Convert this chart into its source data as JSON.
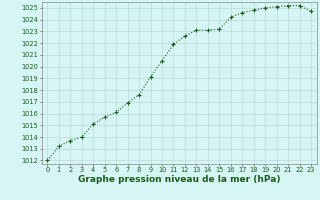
{
  "x": [
    0,
    1,
    2,
    3,
    4,
    5,
    6,
    7,
    8,
    9,
    10,
    11,
    12,
    13,
    14,
    15,
    16,
    17,
    18,
    19,
    20,
    21,
    22,
    23
  ],
  "y": [
    1012.0,
    1013.2,
    1013.7,
    1014.0,
    1015.1,
    1015.7,
    1016.1,
    1016.9,
    1017.6,
    1019.1,
    1020.5,
    1021.9,
    1022.6,
    1023.1,
    1023.1,
    1023.2,
    1024.2,
    1024.6,
    1024.8,
    1025.0,
    1025.1,
    1025.2,
    1025.2,
    1024.7
  ],
  "line_color": "#1a5c1a",
  "marker": "+",
  "marker_size": 3.0,
  "bg_color": "#d6f5f5",
  "grid_color": "#b8d4d4",
  "xlabel": "Graphe pression niveau de la mer (hPa)",
  "xlabel_fontsize": 6.5,
  "ytick_min": 1012,
  "ytick_max": 1025,
  "xtick_labels": [
    "0",
    "1",
    "2",
    "3",
    "4",
    "5",
    "6",
    "7",
    "8",
    "9",
    "10",
    "11",
    "12",
    "13",
    "14",
    "15",
    "16",
    "17",
    "18",
    "19",
    "20",
    "21",
    "22",
    "23"
  ],
  "tick_fontsize": 4.8,
  "linewidth": 0.8,
  "figw": 3.2,
  "figh": 2.0,
  "dpi": 100
}
